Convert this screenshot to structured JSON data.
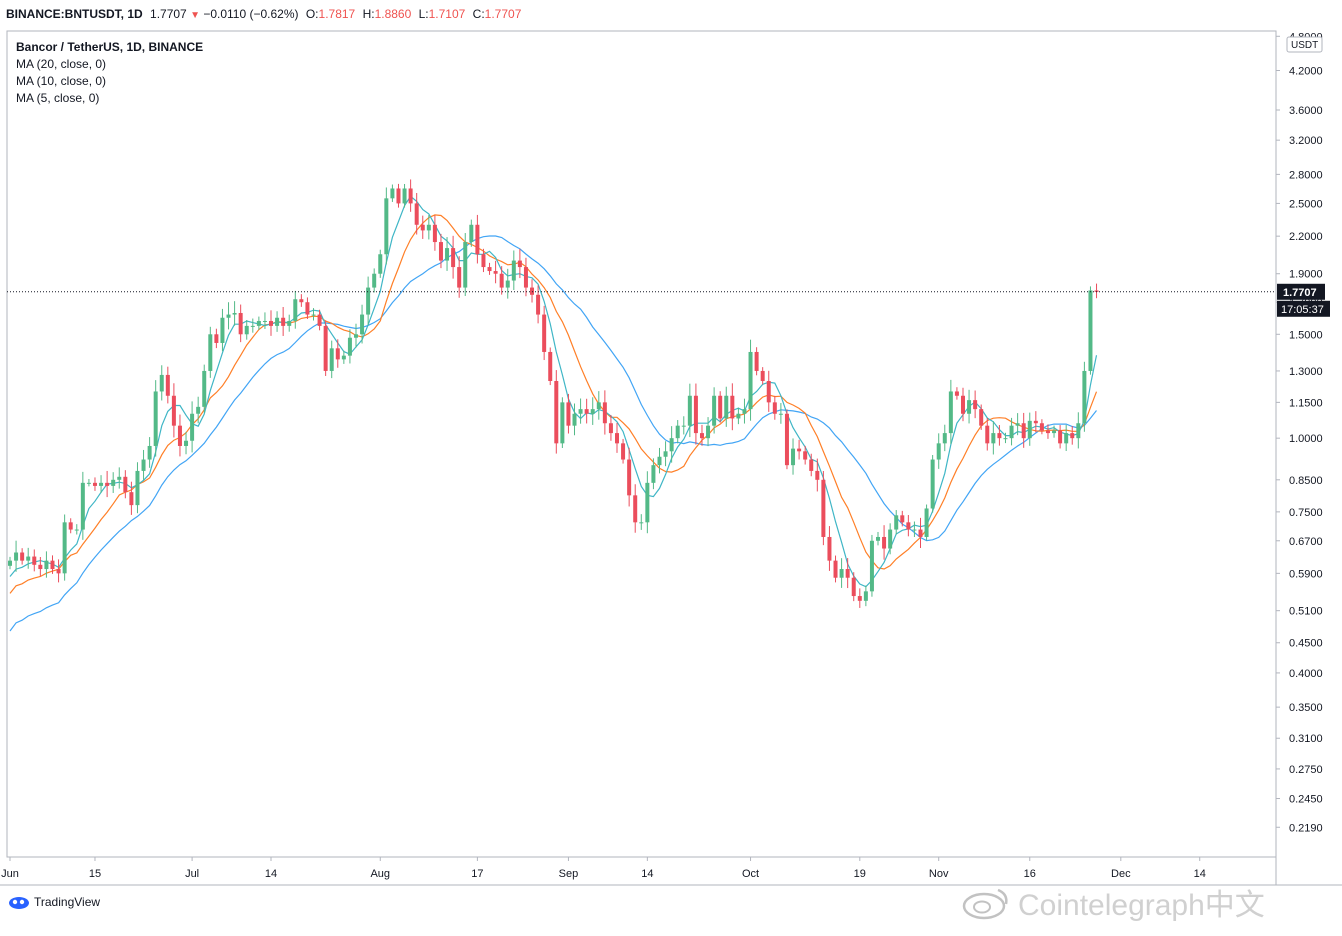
{
  "header": {
    "symbol": "BINANCE:BNTUSDT, 1D",
    "last": "1.7707",
    "arrow": "▼",
    "change": "−0.0110 (−0.62%)",
    "open_label": "O:",
    "open": "1.7817",
    "high_label": "H:",
    "high": "1.8860",
    "low_label": "L:",
    "low": "1.7107",
    "close_label": "C:",
    "close": "1.7707"
  },
  "legend": {
    "title": "Bancor / TetherUS, 1D, BINANCE",
    "ma20": "MA (20, close, 0)",
    "ma10": "MA (10, close, 0)",
    "ma5": "MA (5, close, 0)"
  },
  "axis": {
    "currency": "USDT",
    "price_tag": "1.7707",
    "countdown": "17:05:37"
  },
  "footer": {
    "brand": "TradingView"
  },
  "watermark": {
    "text": "Cointelegraph中文"
  },
  "colors": {
    "up": "#53b987",
    "down": "#eb4d5c",
    "ma20": "#42a5f5",
    "ma10": "#ff7f27",
    "ma5": "#3fb6c6"
  },
  "chart_data": {
    "type": "candlestick",
    "scale": "log",
    "ylim": [
      0.195,
      4.9
    ],
    "y_ticks": [
      "4.8000",
      "4.2000",
      "3.6000",
      "3.2000",
      "2.8000",
      "2.5000",
      "2.2000",
      "1.9000",
      "1.7000",
      "1.5000",
      "1.3000",
      "1.1500",
      "1.0000",
      "0.8500",
      "0.7500",
      "0.6700",
      "0.5900",
      "0.5100",
      "0.4500",
      "0.4000",
      "0.3500",
      "0.3100",
      "0.2750",
      "0.2450",
      "0.2190"
    ],
    "x_labels": [
      {
        "label": "Jun",
        "index": 0
      },
      {
        "label": "15",
        "index": 14
      },
      {
        "label": "Jul",
        "index": 30
      },
      {
        "label": "14",
        "index": 43
      },
      {
        "label": "Aug",
        "index": 61
      },
      {
        "label": "17",
        "index": 77
      },
      {
        "label": "Sep",
        "index": 92
      },
      {
        "label": "14",
        "index": 105
      },
      {
        "label": "Oct",
        "index": 122
      },
      {
        "label": "19",
        "index": 140
      },
      {
        "label": "Nov",
        "index": 153
      },
      {
        "label": "16",
        "index": 168
      },
      {
        "label": "Dec",
        "index": 183
      },
      {
        "label": "14",
        "index": 196
      }
    ],
    "closes": [
      0.62,
      0.64,
      0.62,
      0.63,
      0.61,
      0.6,
      0.62,
      0.6,
      0.59,
      0.72,
      0.7,
      0.7,
      0.84,
      0.84,
      0.83,
      0.84,
      0.83,
      0.85,
      0.86,
      0.81,
      0.77,
      0.88,
      0.92,
      0.97,
      1.2,
      1.28,
      1.18,
      1.05,
      0.97,
      0.99,
      1.1,
      1.13,
      1.3,
      1.5,
      1.45,
      1.6,
      1.62,
      1.63,
      1.5,
      1.55,
      1.55,
      1.58,
      1.58,
      1.55,
      1.6,
      1.55,
      1.58,
      1.72,
      1.7,
      1.62,
      1.62,
      1.55,
      1.3,
      1.42,
      1.36,
      1.38,
      1.48,
      1.5,
      1.62,
      1.8,
      1.9,
      2.05,
      2.55,
      2.65,
      2.5,
      2.65,
      2.5,
      2.3,
      2.25,
      2.3,
      2.15,
      2.0,
      2.1,
      1.95,
      1.8,
      2.15,
      2.3,
      2.05,
      1.95,
      1.92,
      1.9,
      1.8,
      1.85,
      2.0,
      1.95,
      1.8,
      1.75,
      1.62,
      1.4,
      1.25,
      0.98,
      1.15,
      1.05,
      1.1,
      1.12,
      1.1,
      1.12,
      1.15,
      1.06,
      1.02,
      0.98,
      0.92,
      0.8,
      0.72,
      0.72,
      0.84,
      0.9,
      0.93,
      0.95,
      1.0,
      1.05,
      1.05,
      1.18,
      1.02,
      1.0,
      1.05,
      1.18,
      1.08,
      1.18,
      1.08,
      1.1,
      1.12,
      1.4,
      1.3,
      1.25,
      1.15,
      1.1,
      1.1,
      0.9,
      0.96,
      0.95,
      0.92,
      0.88,
      0.85,
      0.68,
      0.62,
      0.58,
      0.6,
      0.58,
      0.54,
      0.53,
      0.55,
      0.67,
      0.68,
      0.65,
      0.7,
      0.74,
      0.72,
      0.7,
      0.7,
      0.68,
      0.76,
      0.92,
      0.98,
      1.02,
      1.2,
      1.18,
      1.1,
      1.16,
      1.12,
      1.05,
      0.98,
      1.02,
      1.0,
      1.0,
      1.05,
      1.06,
      1.0,
      1.07,
      1.06,
      1.03,
      1.02,
      1.03,
      0.98,
      1.02,
      1.0,
      1.06,
      1.3,
      1.78,
      1.77
    ],
    "ma_periods": [
      5,
      10,
      20
    ],
    "series": [
      {
        "name": "MA (20, close, 0)",
        "color_key": "ma20"
      },
      {
        "name": "MA (10, close, 0)",
        "color_key": "ma10"
      },
      {
        "name": "MA (5, close, 0)",
        "color_key": "ma5"
      }
    ],
    "last_price": 1.7707
  }
}
